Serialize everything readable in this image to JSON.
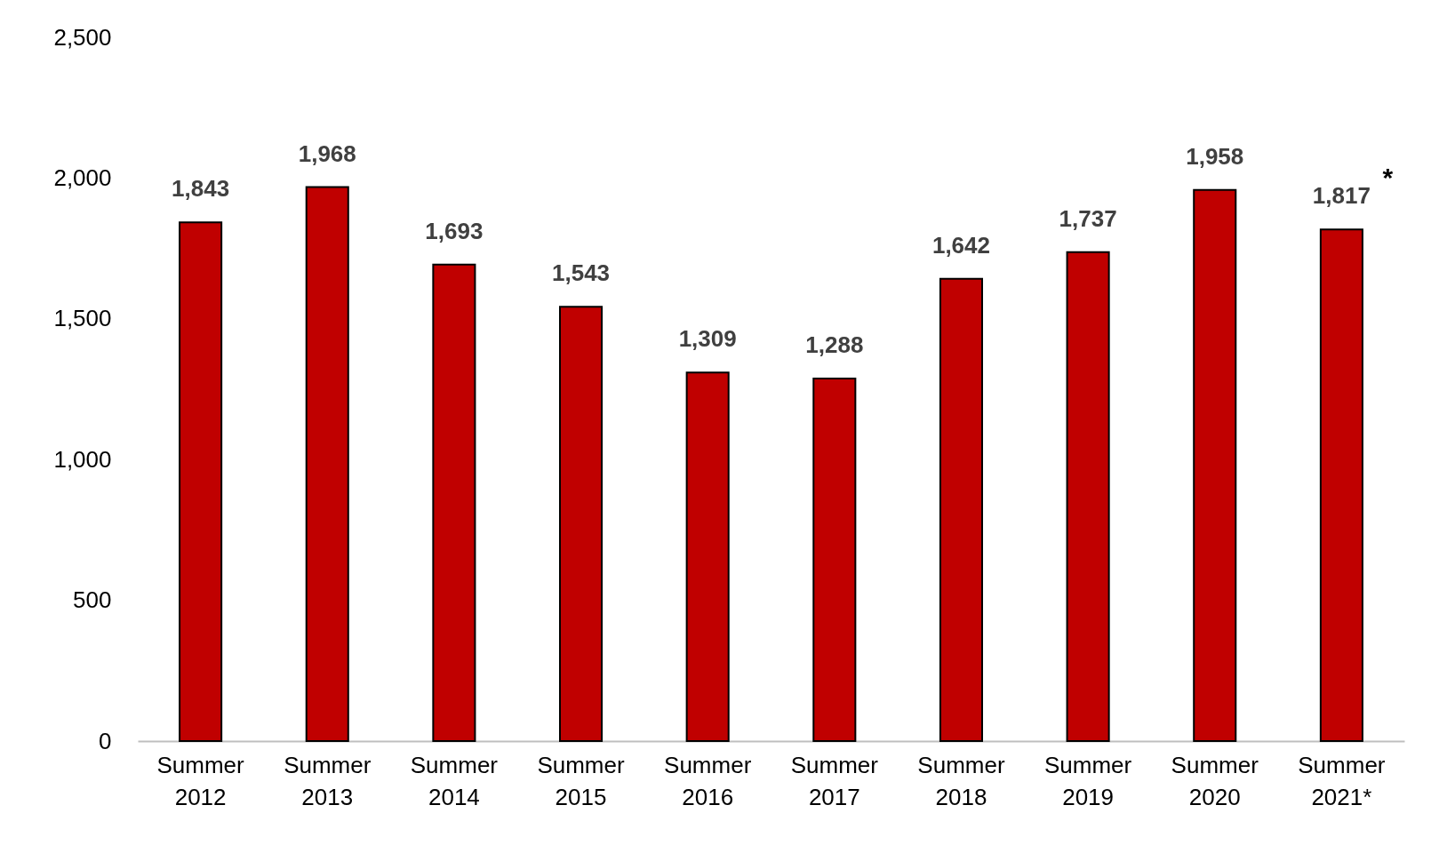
{
  "chart_data": {
    "type": "bar",
    "categories": [
      "Summer 2012",
      "Summer 2013",
      "Summer 2014",
      "Summer 2015",
      "Summer 2016",
      "Summer 2017",
      "Summer 2018",
      "Summer 2019",
      "Summer 2020",
      "Summer 2021*"
    ],
    "values": [
      1843,
      1968,
      1693,
      1543,
      1309,
      1288,
      1642,
      1737,
      1958,
      1817
    ],
    "color": "#c00000",
    "value_labels": [
      "1,843",
      "1,968",
      "1,693",
      "1,543",
      "1,309",
      "1,288",
      "1,642",
      "1,737",
      "1,958",
      "1,817"
    ],
    "ylim": [
      0,
      2500
    ],
    "yticks": [
      0,
      {
        "value": 500,
        "label": "500"
      },
      {
        "value": 1000,
        "label": "1,000"
      },
      {
        "value": 1500,
        "label": "1,500"
      },
      {
        "value": 2000,
        "label": "2,000"
      },
      {
        "value": 2500,
        "label": "2,500"
      }
    ],
    "grid": false,
    "annotations": [
      {
        "text": "*",
        "x": "Summer 2021*",
        "y": 1817
      }
    ]
  }
}
